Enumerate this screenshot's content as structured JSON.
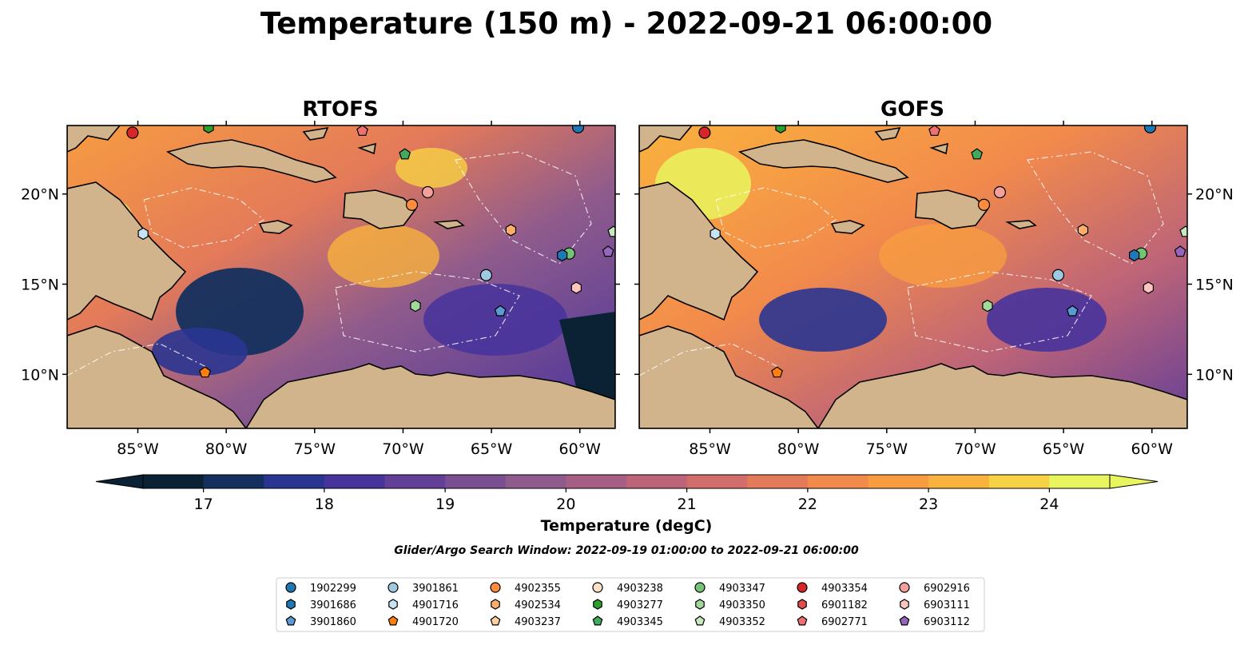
{
  "title": "Temperature (150 m) - 2022-09-21 06:00:00",
  "panels": [
    {
      "title": "RTOFS"
    },
    {
      "title": "GOFS"
    }
  ],
  "axes": {
    "lon_range": [
      -89,
      -58
    ],
    "lat_range": [
      7,
      23.8
    ],
    "x_ticks": [
      "85°W",
      "80°W",
      "75°W",
      "70°W",
      "65°W",
      "60°W"
    ],
    "y_ticks": [
      "20°N",
      "15°N",
      "10°N"
    ]
  },
  "colorbar": {
    "label": "Temperature (degC)",
    "min": 16.5,
    "max": 24.5,
    "step": 0.5,
    "extend": "both",
    "ticks": [
      "17",
      "18",
      "19",
      "20",
      "21",
      "22",
      "23",
      "24"
    ],
    "colors": [
      "#0a2233",
      "#14305e",
      "#2a3591",
      "#47339c",
      "#633f97",
      "#7a4f91",
      "#8f5b8c",
      "#a65e84",
      "#bd6478",
      "#d16d6a",
      "#e37a5a",
      "#f28a4c",
      "#f79c41",
      "#f9b23d",
      "#f7d244",
      "#e9f55e"
    ]
  },
  "search_window": "Glider/Argo Search Window: 2022-09-19 01:00:00 to 2022-09-21 06:00:00",
  "legend": {
    "items": [
      {
        "id": "1902299",
        "marker": "circle",
        "color": "#1f77b4"
      },
      {
        "id": "3901686",
        "marker": "hexagon",
        "color": "#1f77b4"
      },
      {
        "id": "3901860",
        "marker": "pentagon",
        "color": "#5a9bd4"
      },
      {
        "id": "3901861",
        "marker": "circle",
        "color": "#9ecae1"
      },
      {
        "id": "4901716",
        "marker": "hexagon",
        "color": "#c6e2f5"
      },
      {
        "id": "4901720",
        "marker": "pentagon",
        "color": "#ff7f0e"
      },
      {
        "id": "4902355",
        "marker": "circle",
        "color": "#fd8d3c"
      },
      {
        "id": "4902534",
        "marker": "hexagon",
        "color": "#fdae6b"
      },
      {
        "id": "4903237",
        "marker": "pentagon",
        "color": "#fdd0a2"
      },
      {
        "id": "4903238",
        "marker": "circle",
        "color": "#fde0c5"
      },
      {
        "id": "4903277",
        "marker": "hexagon",
        "color": "#2ca02c"
      },
      {
        "id": "4903345",
        "marker": "pentagon",
        "color": "#41ab5d"
      },
      {
        "id": "4903347",
        "marker": "circle",
        "color": "#74c476"
      },
      {
        "id": "4903350",
        "marker": "hexagon",
        "color": "#a1d99b"
      },
      {
        "id": "4903352",
        "marker": "pentagon",
        "color": "#c7e9c0"
      },
      {
        "id": "4903354",
        "marker": "circle",
        "color": "#d62728"
      },
      {
        "id": "6901182",
        "marker": "hexagon",
        "color": "#e34a4a"
      },
      {
        "id": "6902771",
        "marker": "pentagon",
        "color": "#f07070"
      },
      {
        "id": "6902916",
        "marker": "circle",
        "color": "#f4a09a"
      },
      {
        "id": "6903111",
        "marker": "hexagon",
        "color": "#fcc5c0"
      },
      {
        "id": "6903112",
        "marker": "pentagon",
        "color": "#9467bd"
      }
    ]
  },
  "observations": [
    {
      "id": "4903354",
      "lon": -85.3,
      "lat": 23.4
    },
    {
      "id": "4903277",
      "lon": -81.0,
      "lat": 23.7
    },
    {
      "id": "6902771",
      "lon": -72.3,
      "lat": 23.5
    },
    {
      "id": "4903345",
      "lon": -69.9,
      "lat": 22.2
    },
    {
      "id": "1902299",
      "lon": -60.1,
      "lat": 23.7
    },
    {
      "id": "6902916",
      "lon": -68.6,
      "lat": 20.1
    },
    {
      "id": "4902355",
      "lon": -69.5,
      "lat": 19.4
    },
    {
      "id": "4901716",
      "lon": -84.7,
      "lat": 17.8
    },
    {
      "id": "4902534",
      "lon": -63.9,
      "lat": 18.0
    },
    {
      "id": "4903352",
      "lon": -58.1,
      "lat": 17.9
    },
    {
      "id": "4903347",
      "lon": -60.6,
      "lat": 16.7
    },
    {
      "id": "3901686",
      "lon": -61.0,
      "lat": 16.6
    },
    {
      "id": "6903112",
      "lon": -58.4,
      "lat": 16.8
    },
    {
      "id": "3901861",
      "lon": -65.3,
      "lat": 15.5
    },
    {
      "id": "6903111",
      "lon": -60.2,
      "lat": 14.8
    },
    {
      "id": "4903350",
      "lon": -69.3,
      "lat": 13.8
    },
    {
      "id": "3901860",
      "lon": -64.5,
      "lat": 13.5
    },
    {
      "id": "4901720",
      "lon": -81.2,
      "lat": 10.1
    }
  ]
}
